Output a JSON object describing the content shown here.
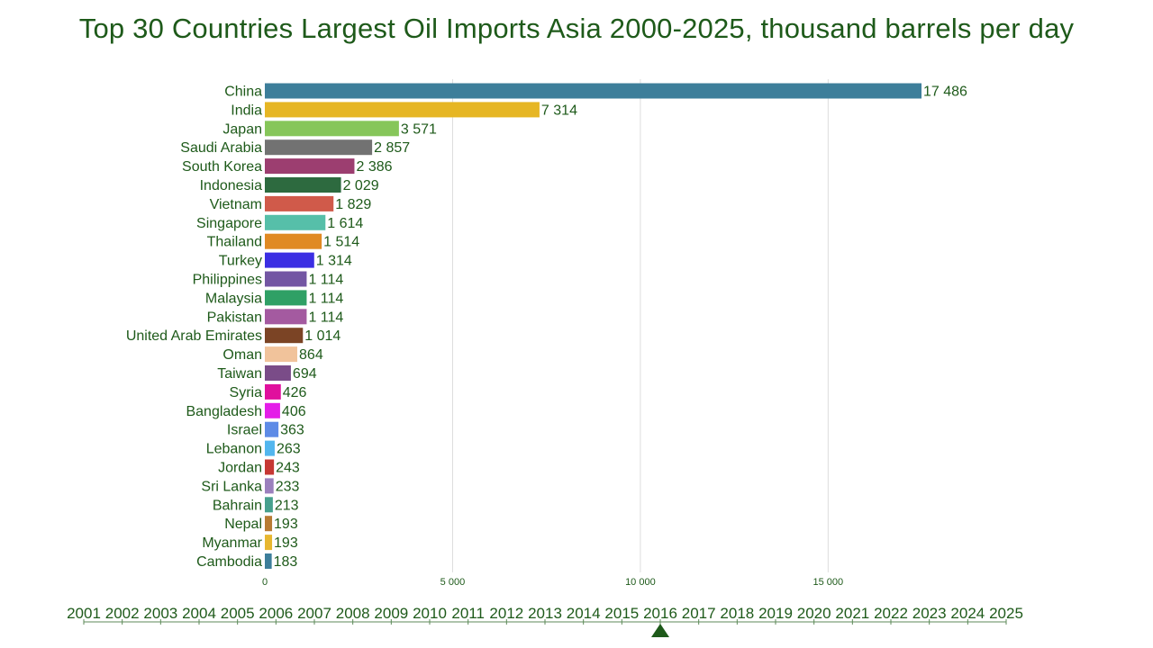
{
  "title": "Top 30 Countries Largest Oil Imports Asia 2000-2025, thousand barrels per day",
  "colors": {
    "text": "#1e5a1a",
    "grid": "#dddddd"
  },
  "timeline": {
    "years": [
      "2001",
      "2002",
      "2003",
      "2004",
      "2005",
      "2006",
      "2007",
      "2008",
      "2009",
      "2010",
      "2011",
      "2012",
      "2013",
      "2014",
      "2015",
      "2016",
      "2017",
      "2018",
      "2019",
      "2020",
      "2021",
      "2022",
      "2023",
      "2024",
      "2025"
    ],
    "current_year": "2016"
  },
  "chart_data": {
    "type": "bar",
    "orientation": "horizontal",
    "title": "Top 30 Countries Largest Oil Imports Asia 2000-2025, thousand barrels per day",
    "xlim": [
      0,
      19800
    ],
    "x_ticks": [
      0,
      5000,
      10000,
      15000
    ],
    "x_tick_labels": [
      "0",
      "5 000",
      "10 000",
      "15 000"
    ],
    "grid": true,
    "categories": [
      "China",
      "India",
      "Japan",
      "Saudi Arabia",
      "South Korea",
      "Indonesia",
      "Vietnam",
      "Singapore",
      "Thailand",
      "Turkey",
      "Philippines",
      "Malaysia",
      "Pakistan",
      "United Arab Emirates",
      "Oman",
      "Taiwan",
      "Syria",
      "Bangladesh",
      "Israel",
      "Lebanon",
      "Jordan",
      "Sri Lanka",
      "Bahrain",
      "Nepal",
      "Myanmar",
      "Cambodia"
    ],
    "values": [
      17486,
      7314,
      3571,
      2857,
      2386,
      2029,
      1829,
      1614,
      1514,
      1314,
      1114,
      1114,
      1114,
      1014,
      864,
      694,
      426,
      406,
      363,
      263,
      243,
      233,
      213,
      193,
      193,
      183
    ],
    "value_labels": [
      "17 486",
      "7 314",
      "3 571",
      "2 857",
      "2 386",
      "2 029",
      "1 829",
      "1 614",
      "1 514",
      "1 314",
      "1 114",
      "1 114",
      "1 114",
      "1 014",
      "864",
      "694",
      "426",
      "406",
      "363",
      "263",
      "243",
      "233",
      "213",
      "193",
      "193",
      "183"
    ],
    "bar_colors": [
      "#3d7e9a",
      "#e6b624",
      "#86c65a",
      "#727272",
      "#9c3e70",
      "#2d6a3f",
      "#d05a4a",
      "#56bfa9",
      "#e08a23",
      "#3b2ee3",
      "#7356a3",
      "#2fa065",
      "#a45aa0",
      "#7b4425",
      "#f1c39b",
      "#7a4c88",
      "#e0109d",
      "#e41ee8",
      "#5e8be6",
      "#52b6ee",
      "#c63834",
      "#9b80bd",
      "#47a08d",
      "#b87b34",
      "#e7b730",
      "#3d7e9a"
    ]
  }
}
